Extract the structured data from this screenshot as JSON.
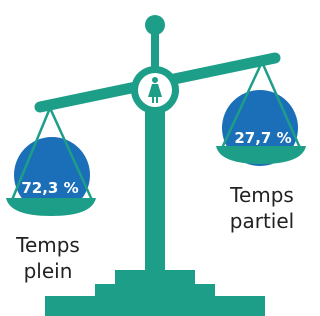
{
  "pans": [
    {
      "value_label": "72,3 %",
      "label_lines": [
        "Temps",
        "plein"
      ]
    },
    {
      "value_label": "27,7 %",
      "label_lines": [
        "Temps",
        "partiel"
      ]
    }
  ]
}
